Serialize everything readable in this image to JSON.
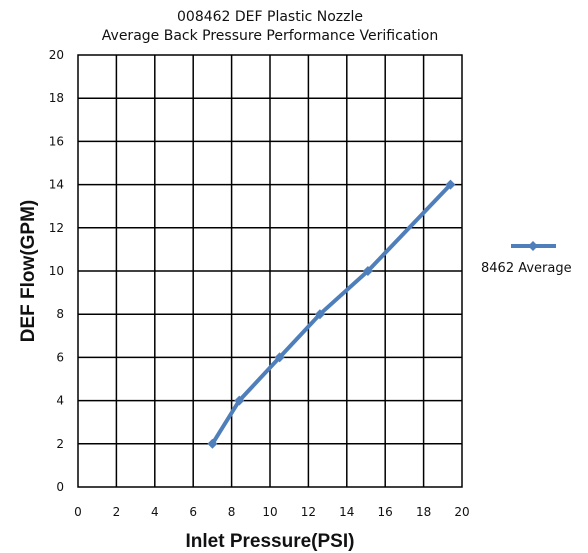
{
  "chart_data": {
    "type": "line",
    "title": "008462 DEF Plastic Nozzle",
    "subtitle": "Average Back Pressure Performance Verification",
    "xlabel": "Inlet Pressure(PSI)",
    "ylabel": "DEF Flow(GPM)",
    "xlim": [
      0,
      20
    ],
    "ylim": [
      0,
      20
    ],
    "xticks": [
      "0",
      "2",
      "4",
      "6",
      "8",
      "10",
      "12",
      "14",
      "16",
      "18",
      "20"
    ],
    "yticks": [
      "0",
      "2",
      "4",
      "6",
      "8",
      "10",
      "12",
      "14",
      "16",
      "18",
      "20"
    ],
    "grid": true,
    "legend_position": "right",
    "series": [
      {
        "name": "8462 Average",
        "color": "#4f7fba",
        "marker": "diamond",
        "x": [
          7.0,
          8.4,
          10.5,
          12.6,
          15.1,
          19.4
        ],
        "y": [
          2,
          4,
          6,
          8,
          10,
          14
        ]
      }
    ]
  }
}
